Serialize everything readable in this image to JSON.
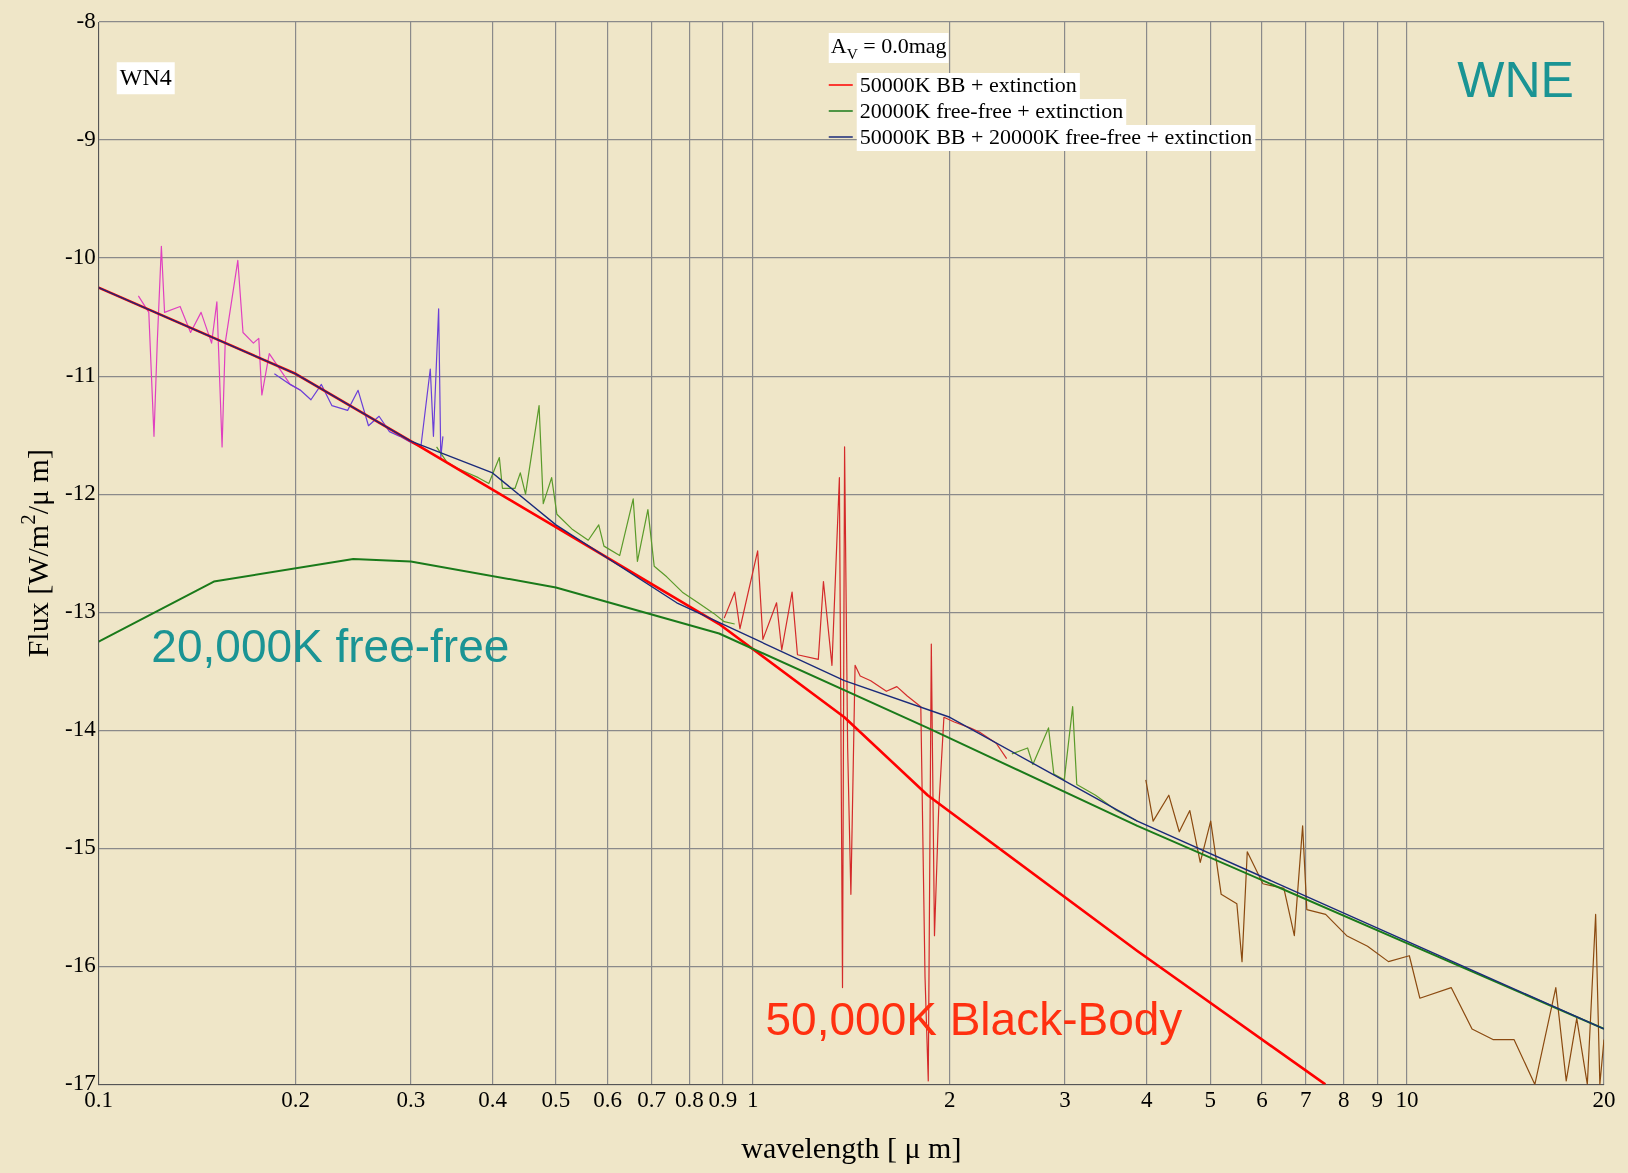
{
  "chart_data": {
    "type": "line",
    "xlabel": "wavelength [ μ m]",
    "ylabel": "Flux [W/m$^{2}$/μ m]",
    "legend_title": "A$_{V}$ = 0.0mag",
    "log": "x",
    "grid": true,
    "legend": "top",
    "xlim": [
      0.1,
      20
    ],
    "xticks": [
      0.1,
      0.2,
      0.3,
      0.4,
      0.5,
      0.6,
      0.7,
      0.8,
      0.9,
      1,
      2,
      3,
      4,
      5,
      6,
      7,
      8,
      9,
      10,
      20
    ],
    "ylim": [
      -17,
      -8
    ],
    "yticks": [
      -17,
      -16,
      -15,
      -14,
      -13,
      -12,
      -11,
      -10,
      -9,
      -8
    ],
    "annotations": [
      "WN4",
      "WNE",
      "20,000K free-free",
      "50,000K Black-Body"
    ],
    "series": [
      {
        "color": "#e040c0",
        "x": [
          0.115,
          0.1193,
          0.1215,
          0.1229,
          0.1247,
          0.1261,
          0.1332,
          0.1382,
          0.1434,
          0.1488,
          0.1516,
          0.1544,
          0.1561,
          0.1632,
          0.1662,
          0.1724,
          0.1757,
          0.1776,
          0.1823,
          0.1962,
          0.2035
        ],
        "values": [
          -10.32,
          -10.46,
          -11.51,
          -10.72,
          -9.9,
          -10.46,
          -10.41,
          -10.63,
          -10.46,
          -10.72,
          -10.37,
          -11.6,
          -10.72,
          -10.02,
          -10.63,
          -10.72,
          -10.68,
          -11.16,
          -10.81,
          -11.07,
          -11.12
        ]
      },
      {
        "color": "#6a3fd8",
        "x": [
          0.1856,
          0.1962,
          0.2035,
          0.2111,
          0.219,
          0.2273,
          0.2402,
          0.2492,
          0.2585,
          0.2683,
          0.2783,
          0.2887,
          0.2996,
          0.3108,
          0.3213,
          0.3249,
          0.3309,
          0.3334,
          0.3359
        ],
        "values": [
          -10.98,
          -11.07,
          -11.12,
          -11.2,
          -11.07,
          -11.25,
          -11.29,
          -11.12,
          -11.42,
          -11.34,
          -11.47,
          -11.51,
          -11.56,
          -11.6,
          -10.94,
          -11.51,
          -10.43,
          -11.69,
          -11.51
        ]
      },
      {
        "color": "#5a9a2a",
        "x": [
          0.3285,
          0.3408,
          0.3535,
          0.3668,
          0.3805,
          0.3948,
          0.4097,
          0.4142,
          0.433,
          0.4411,
          0.4493,
          0.4712,
          0.4782,
          0.4925,
          0.5017,
          0.5302,
          0.5603,
          0.5813,
          0.5921,
          0.6258,
          0.6563,
          0.6661,
          0.6911,
          0.7066,
          0.7385,
          0.7803,
          0.8247,
          0.8714,
          0.9041,
          0.938
        ],
        "values": [
          -11.6,
          -11.73,
          -11.78,
          -11.82,
          -11.86,
          -11.91,
          -11.69,
          -11.95,
          -11.95,
          -11.82,
          -12.0,
          -11.25,
          -12.08,
          -11.86,
          -12.17,
          -12.3,
          -12.39,
          -12.26,
          -12.44,
          -12.52,
          -12.04,
          -12.57,
          -12.13,
          -12.61,
          -12.7,
          -12.83,
          -12.92,
          -13.01,
          -13.08,
          -13.1
        ]
      },
      {
        "color": "#d42a2a",
        "x": [
          0.9041,
          0.938,
          0.9555,
          1.017,
          1.036,
          1.087,
          1.107,
          1.148,
          1.17,
          1.259,
          1.282,
          1.321,
          1.356,
          1.371,
          1.381,
          1.396,
          1.412,
          1.433,
          1.459,
          1.514,
          1.6,
          1.66,
          1.722,
          1.806,
          1.833,
          1.854,
          1.874,
          1.895,
          1.923,
          1.959,
          2.032,
          2.148,
          2.228,
          2.355,
          2.443
        ],
        "values": [
          -13.05,
          -12.83,
          -13.14,
          -12.48,
          -13.23,
          -12.92,
          -13.32,
          -12.83,
          -13.36,
          -13.4,
          -12.74,
          -13.45,
          -11.86,
          -16.18,
          -11.6,
          -14.15,
          -15.39,
          -13.45,
          -13.54,
          -13.58,
          -13.67,
          -13.63,
          -13.71,
          -13.8,
          -16.09,
          -16.97,
          -13.27,
          -15.74,
          -14.68,
          -13.89,
          -13.93,
          -13.98,
          -14.02,
          -14.11,
          -14.24
        ]
      },
      {
        "color": "#5a9a2a",
        "x": [
          2.488,
          2.63,
          2.679,
          2.831,
          2.884,
          2.992,
          3.082,
          3.127,
          3.341,
          3.596,
          3.871
        ],
        "values": [
          -14.2,
          -14.15,
          -14.29,
          -13.98,
          -14.37,
          -14.42,
          -13.8,
          -14.46,
          -14.55,
          -14.68,
          -14.77
        ]
      },
      {
        "color": "#8b4a10",
        "x": [
          3.987,
          4.091,
          4.323,
          4.485,
          4.655,
          4.829,
          5.01,
          5.198,
          5.493,
          5.594,
          5.698,
          6.021,
          6.482,
          6.725,
          6.924,
          7.027,
          7.508,
          8.084,
          8.702,
          9.366,
          10.08,
          10.46,
          11.68,
          12.57,
          13.53,
          14.57,
          15.68,
          16.88,
          17.51,
          18.17,
          18.86,
          19.42,
          19.71,
          20
        ],
        "values": [
          -14.42,
          -14.77,
          -14.55,
          -14.86,
          -14.68,
          -15.12,
          -14.77,
          -15.39,
          -15.47,
          -15.96,
          -15.03,
          -15.3,
          -15.34,
          -15.74,
          -14.81,
          -15.52,
          -15.56,
          -15.74,
          -15.83,
          -15.96,
          -15.91,
          -16.27,
          -16.18,
          -16.53,
          -16.62,
          -16.62,
          -17.0,
          -16.18,
          -16.97,
          -16.44,
          -17.0,
          -15.56,
          -17.0,
          -16.62
        ]
      },
      {
        "name": "50000K BB + extinction",
        "color": "#ff0000",
        "x": [
          0.1,
          0.2,
          0.3,
          0.5,
          0.888,
          1.38,
          1.85,
          3.87,
          7.5
        ],
        "values": [
          -10.25,
          -10.98,
          -11.55,
          -12.28,
          -13.1,
          -13.89,
          -14.55,
          -15.87,
          -17.0
        ]
      },
      {
        "name": "20000K free-free + extinction",
        "color": "#1a7a1a",
        "x": [
          0.1,
          0.15,
          0.245,
          0.3,
          0.5,
          0.888,
          1.85,
          3.87,
          20
        ],
        "values": [
          -13.25,
          -12.74,
          -12.55,
          -12.57,
          -12.79,
          -13.18,
          -13.98,
          -14.81,
          -16.53
        ]
      },
      {
        "name": "50000K BB + 20000K free-free + extinction",
        "color": "#1a2a7a",
        "x": [
          0.1,
          0.2,
          0.3,
          0.4,
          0.5,
          0.765,
          1.38,
          2,
          3.87,
          20
        ],
        "values": [
          -10.25,
          -10.98,
          -11.55,
          -11.82,
          -12.26,
          -12.92,
          -13.58,
          -13.89,
          -14.77,
          -16.53
        ]
      }
    ]
  }
}
